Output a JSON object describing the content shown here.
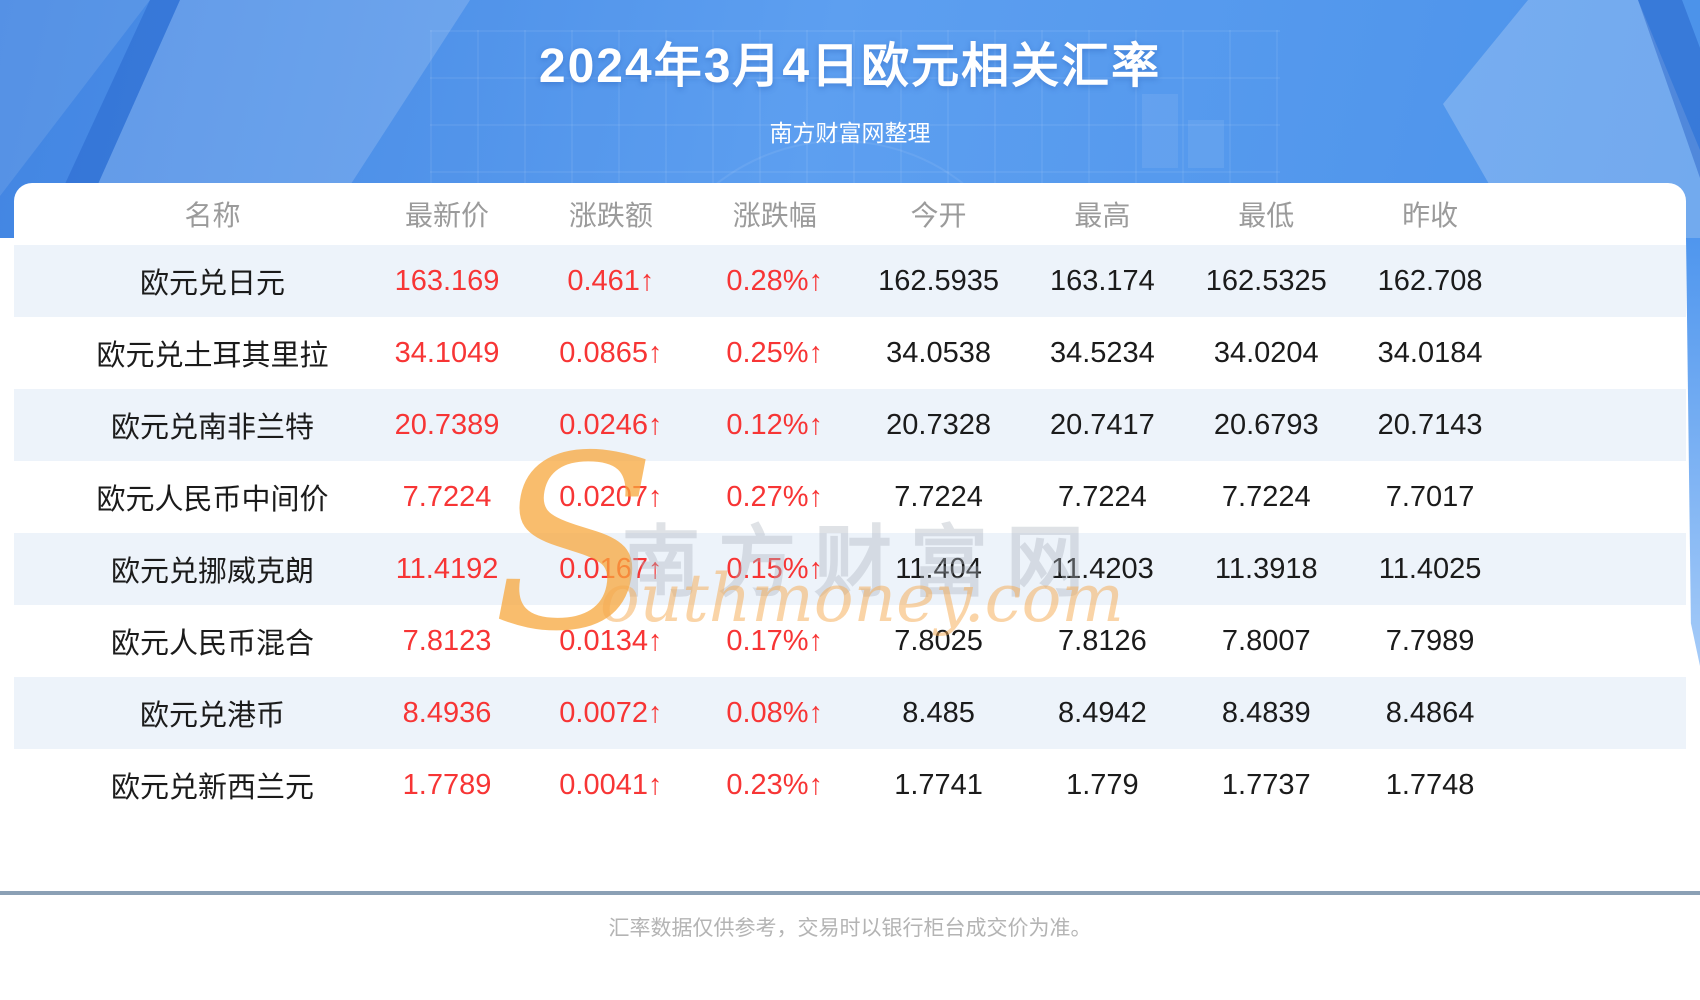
{
  "header": {
    "title": "2024年3月4日欧元相关汇率",
    "subtitle": "南方财富网整理"
  },
  "table": {
    "columns": [
      "名称",
      "最新价",
      "涨跌额",
      "涨跌幅",
      "今开",
      "最高",
      "最低",
      "昨收"
    ],
    "rows": [
      {
        "name": "欧元兑日元",
        "last": "163.169",
        "change": "0.461↑",
        "pct": "0.28%↑",
        "open": "162.5935",
        "high": "163.174",
        "low": "162.5325",
        "prev": "162.708"
      },
      {
        "name": "欧元兑土耳其里拉",
        "last": "34.1049",
        "change": "0.0865↑",
        "pct": "0.25%↑",
        "open": "34.0538",
        "high": "34.5234",
        "low": "34.0204",
        "prev": "34.0184"
      },
      {
        "name": "欧元兑南非兰特",
        "last": "20.7389",
        "change": "0.0246↑",
        "pct": "0.12%↑",
        "open": "20.7328",
        "high": "20.7417",
        "low": "20.6793",
        "prev": "20.7143"
      },
      {
        "name": "欧元人民币中间价",
        "last": "7.7224",
        "change": "0.0207↑",
        "pct": "0.27%↑",
        "open": "7.7224",
        "high": "7.7224",
        "low": "7.7224",
        "prev": "7.7017"
      },
      {
        "name": "欧元兑挪威克朗",
        "last": "11.4192",
        "change": "0.0167↑",
        "pct": "0.15%↑",
        "open": "11.404",
        "high": "11.4203",
        "low": "11.3918",
        "prev": "11.4025"
      },
      {
        "name": "欧元人民币混合",
        "last": "7.8123",
        "change": "0.0134↑",
        "pct": "0.17%↑",
        "open": "7.8025",
        "high": "7.8126",
        "low": "7.8007",
        "prev": "7.7989"
      },
      {
        "name": "欧元兑港币",
        "last": "8.4936",
        "change": "0.0072↑",
        "pct": "0.08%↑",
        "open": "8.485",
        "high": "8.4942",
        "low": "8.4839",
        "prev": "8.4864"
      },
      {
        "name": "欧元兑新西兰元",
        "last": "1.7789",
        "change": "0.0041↑",
        "pct": "0.23%↑",
        "open": "1.7741",
        "high": "1.779",
        "low": "1.7737",
        "prev": "1.7748"
      }
    ]
  },
  "watermark": {
    "initial": "S",
    "cn": "南方财富网",
    "en": "outhmoney.com"
  },
  "footer": {
    "note": "汇率数据仅供参考，交易时以银行柜台成交价为准。"
  },
  "colors": {
    "header_blue": "#4a90ea",
    "stripe": "#edf3fa",
    "up_red": "#f73535",
    "divider": "#8ba0b5"
  },
  "chart_data": {
    "type": "table",
    "title": "2024年3月4日欧元相关汇率",
    "subtitle": "南方财富网整理",
    "columns": [
      "名称",
      "最新价",
      "涨跌额",
      "涨跌幅",
      "今开",
      "最高",
      "最低",
      "昨收"
    ],
    "rows": [
      [
        "欧元兑日元",
        "163.169",
        "0.461↑",
        "0.28%↑",
        "162.5935",
        "163.174",
        "162.5325",
        "162.708"
      ],
      [
        "欧元兑土耳其里拉",
        "34.1049",
        "0.0865↑",
        "0.25%↑",
        "34.0538",
        "34.5234",
        "34.0204",
        "34.0184"
      ],
      [
        "欧元兑南非兰特",
        "20.7389",
        "0.0246↑",
        "0.12%↑",
        "20.7328",
        "20.7417",
        "20.6793",
        "20.7143"
      ],
      [
        "欧元人民币中间价",
        "7.7224",
        "0.0207↑",
        "0.27%↑",
        "7.7224",
        "7.7224",
        "7.7224",
        "7.7017"
      ],
      [
        "欧元兑挪威克朗",
        "11.4192",
        "0.0167↑",
        "0.15%↑",
        "11.404",
        "11.4203",
        "11.3918",
        "11.4025"
      ],
      [
        "欧元人民币混合",
        "7.8123",
        "0.0134↑",
        "0.17%↑",
        "7.8025",
        "7.8126",
        "7.8007",
        "7.7989"
      ],
      [
        "欧元兑港币",
        "8.4936",
        "0.0072↑",
        "0.08%↑",
        "8.485",
        "8.4942",
        "8.4839",
        "8.4864"
      ],
      [
        "欧元兑新西兰元",
        "1.7789",
        "0.0041↑",
        "0.23%↑",
        "1.7741",
        "1.779",
        "1.7737",
        "1.7748"
      ]
    ]
  }
}
